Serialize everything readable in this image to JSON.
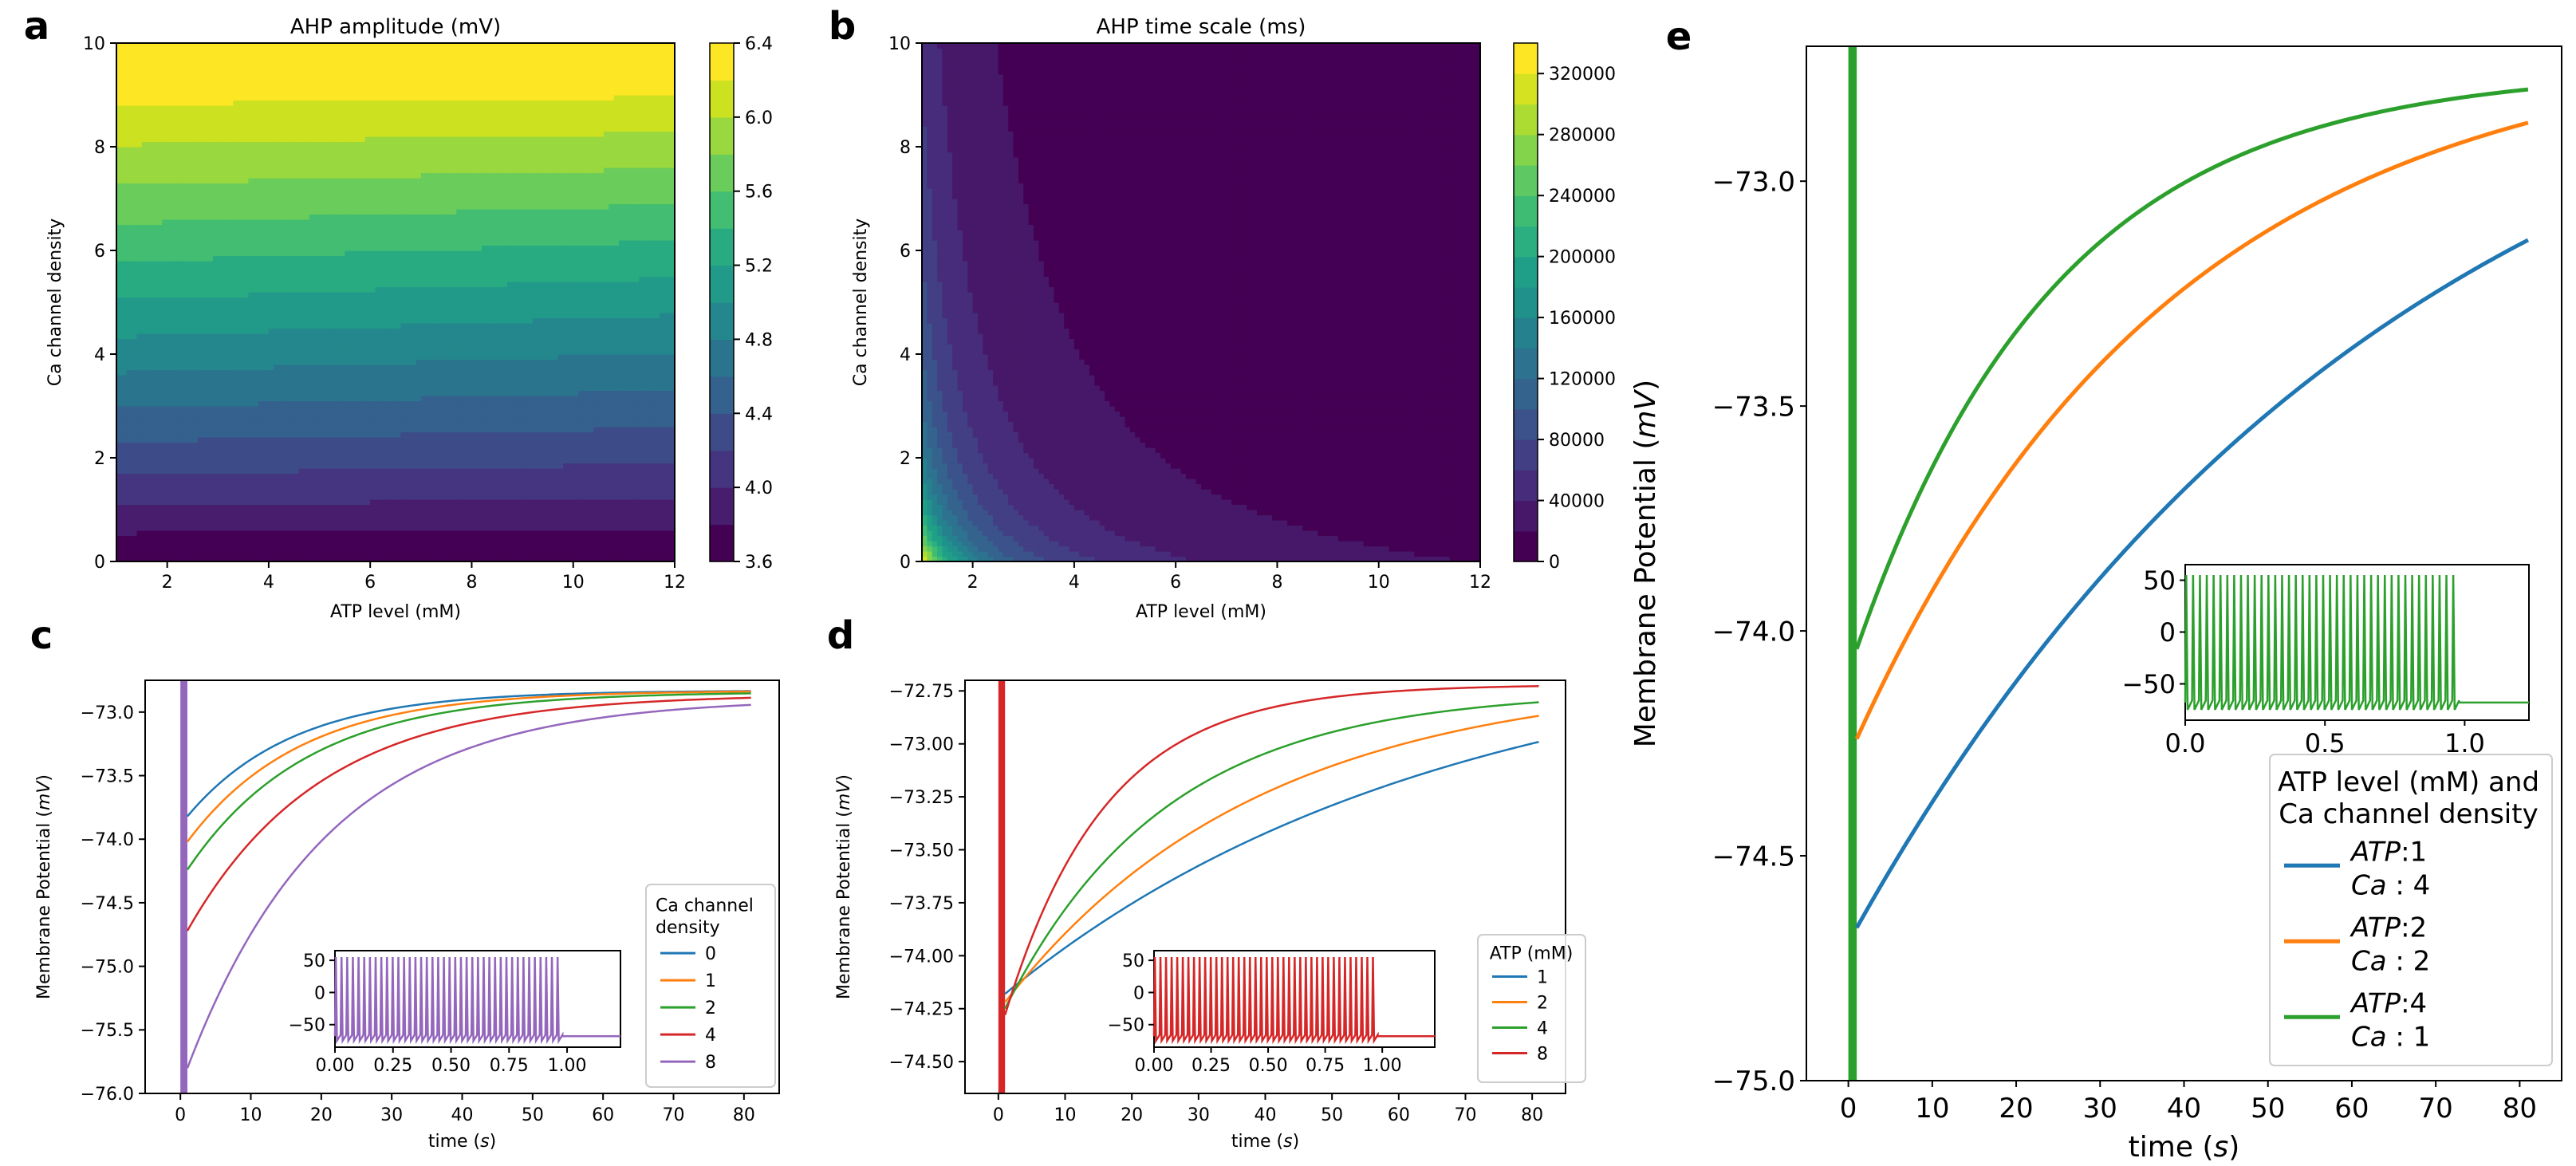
{
  "colors": {
    "viridis": [
      "#440154",
      "#481f70",
      "#443983",
      "#3b528b",
      "#31688e",
      "#287c8e",
      "#21918c",
      "#20a486",
      "#35b779",
      "#5ec962",
      "#90d743",
      "#c8e020",
      "#fde725"
    ],
    "tab": [
      "#1f77b4",
      "#ff7f0e",
      "#2ca02c",
      "#d62728",
      "#9467bd"
    ],
    "red": "#d62728",
    "purple": "#9467bd",
    "green": "#2ca02c"
  },
  "chart_data": [
    {
      "id": "a",
      "panel_label": "a",
      "type": "heatmap",
      "title": "AHP amplitude (mV)",
      "xlabel": "ATP level (mM)",
      "ylabel": "Ca channel density",
      "xlim": [
        1,
        12
      ],
      "ylim": [
        0,
        10
      ],
      "xticks": [
        "2",
        "4",
        "6",
        "8",
        "10",
        "12"
      ],
      "xtick_values": [
        2,
        4,
        6,
        8,
        10,
        12
      ],
      "yticks": [
        "0",
        "2",
        "4",
        "6",
        "8",
        "10"
      ],
      "ytick_values": [
        0,
        2,
        4,
        6,
        8,
        10
      ],
      "colorbar_ticks": [
        "3.6",
        "4.0",
        "4.4",
        "4.8",
        "5.2",
        "5.6",
        "6.0",
        "6.4"
      ],
      "colorbar_range": [
        3.6,
        6.4
      ],
      "colorbar_levels": 14
    },
    {
      "id": "b",
      "panel_label": "b",
      "type": "heatmap",
      "title": "AHP time scale (ms)",
      "xlabel": "ATP level (mM)",
      "ylabel": "Ca channel density",
      "xlim": [
        1,
        12
      ],
      "ylim": [
        0,
        10
      ],
      "xticks": [
        "2",
        "4",
        "6",
        "8",
        "10",
        "12"
      ],
      "xtick_values": [
        2,
        4,
        6,
        8,
        10,
        12
      ],
      "yticks": [
        "0",
        "2",
        "4",
        "6",
        "8",
        "10"
      ],
      "ytick_values": [
        0,
        2,
        4,
        6,
        8,
        10
      ],
      "colorbar_ticks": [
        "0",
        "40000",
        "80000",
        "120000",
        "160000",
        "200000",
        "240000",
        "280000",
        "320000"
      ],
      "colorbar_range": [
        0,
        340000
      ],
      "colorbar_levels": 17
    },
    {
      "id": "c",
      "panel_label": "c",
      "type": "line",
      "xlabel": "time (s)",
      "xlabel_pre": "time (",
      "xlabel_var": "s",
      "xlabel_post": ")",
      "ylabel": "Membrane Potential (mV)",
      "ylabel_pre": "Membrane Potential (",
      "ylabel_var": "mV",
      "ylabel_post": ")",
      "xlim": [
        -5,
        85
      ],
      "ylim": [
        -76,
        -72.75
      ],
      "xticks": [
        "0",
        "10",
        "20",
        "30",
        "40",
        "50",
        "60",
        "70",
        "80"
      ],
      "xtick_values": [
        0,
        10,
        20,
        30,
        40,
        50,
        60,
        70,
        80
      ],
      "yticks": [
        "-76.0",
        "-75.5",
        "-75.0",
        "-74.5",
        "-74.0",
        "-73.5",
        "-73.0"
      ],
      "ytick_values": [
        -76.0,
        -75.5,
        -75.0,
        -74.5,
        -74.0,
        -73.5,
        -73.0
      ],
      "legend_title": [
        "Ca channel",
        "density"
      ],
      "legend_position": "lower-right",
      "series": [
        {
          "name": "0",
          "start": -73.82,
          "end": -72.83,
          "tau": 15
        },
        {
          "name": "1",
          "start": -74.02,
          "end": -72.83,
          "tau": 16
        },
        {
          "name": "2",
          "start": -74.24,
          "end": -72.84,
          "tau": 17
        },
        {
          "name": "4",
          "start": -74.72,
          "end": -72.86,
          "tau": 19
        },
        {
          "name": "8",
          "start": -75.8,
          "end": -72.89,
          "tau": 20
        }
      ],
      "inset": {
        "xlim": [
          0,
          1.23
        ],
        "ylim": [
          -85,
          65
        ],
        "xticks": [
          "0.00",
          "0.25",
          "0.50",
          "0.75",
          "1.00"
        ],
        "xtick_values": [
          0,
          0.25,
          0.5,
          0.75,
          1.0
        ],
        "yticks": [
          "50",
          "0",
          "-50"
        ],
        "ytick_values": [
          50,
          0,
          -50
        ],
        "spike_high": 55,
        "spike_low": -75,
        "spike_end": 0.98,
        "spike_count": 40,
        "rest": -68
      }
    },
    {
      "id": "d",
      "panel_label": "d",
      "type": "line",
      "xlabel": "time (s)",
      "xlabel_pre": "time (",
      "xlabel_var": "s",
      "xlabel_post": ")",
      "ylabel": "Membrane Potential (mV)",
      "ylabel_pre": "Membrane Potential (",
      "ylabel_var": "mV",
      "ylabel_post": ")",
      "xlim": [
        -5,
        85
      ],
      "ylim": [
        -74.65,
        -72.7
      ],
      "xticks": [
        "0",
        "10",
        "20",
        "30",
        "40",
        "50",
        "60",
        "70",
        "80"
      ],
      "xtick_values": [
        0,
        10,
        20,
        30,
        40,
        50,
        60,
        70,
        80
      ],
      "yticks": [
        "-74.50",
        "-74.25",
        "-74.00",
        "-73.75",
        "-73.50",
        "-73.25",
        "-73.00",
        "-72.75"
      ],
      "ytick_values": [
        -74.5,
        -74.25,
        -74.0,
        -73.75,
        -73.5,
        -73.25,
        -73.0,
        -72.75
      ],
      "legend_title": [
        "ATP (mM)"
      ],
      "legend_position": "lower-right",
      "series": [
        {
          "name": "1",
          "start": -74.18,
          "end": -72.5,
          "tau": 65
        },
        {
          "name": "2",
          "start": -74.22,
          "end": -72.68,
          "tau": 38
        },
        {
          "name": "4",
          "start": -74.25,
          "end": -72.75,
          "tau": 24
        },
        {
          "name": "8",
          "start": -74.28,
          "end": -72.72,
          "tau": 15
        }
      ],
      "inset": {
        "xlim": [
          0,
          1.23
        ],
        "ylim": [
          -85,
          65
        ],
        "xticks": [
          "0.00",
          "0.25",
          "0.50",
          "0.75",
          "1.00"
        ],
        "xtick_values": [
          0,
          0.25,
          0.5,
          0.75,
          1.0
        ],
        "yticks": [
          "50",
          "0",
          "-50"
        ],
        "ytick_values": [
          50,
          0,
          -50
        ],
        "spike_high": 55,
        "spike_low": -75,
        "spike_end": 0.98,
        "spike_count": 40,
        "rest": -68
      }
    },
    {
      "id": "e",
      "panel_label": "e",
      "type": "line",
      "xlabel": "time (s)",
      "xlabel_pre": "time (",
      "xlabel_var": "s",
      "xlabel_post": ")",
      "ylabel": "Membrane Potential (mV)",
      "ylabel_pre": "Membrane Potential (",
      "ylabel_var": "mV",
      "ylabel_post": ")",
      "xlim": [
        -5,
        85
      ],
      "ylim": [
        -75.0,
        -72.7
      ],
      "xticks": [
        "0",
        "10",
        "20",
        "30",
        "40",
        "50",
        "60",
        "70",
        "80"
      ],
      "xtick_values": [
        0,
        10,
        20,
        30,
        40,
        50,
        60,
        70,
        80
      ],
      "yticks": [
        "-75.0",
        "-74.5",
        "-74.0",
        "-73.5",
        "-73.0"
      ],
      "ytick_values": [
        -75.0,
        -74.5,
        -74.0,
        -73.5,
        -73.0
      ],
      "legend_title": [
        "ATP level (mM) and",
        "Ca channel density"
      ],
      "legend_position": "lower-right",
      "series": [
        {
          "name": "ATP:1 Ca:4",
          "atp": "1",
          "ca": "4",
          "start": -74.66,
          "end": -72.5,
          "tau": 65
        },
        {
          "name": "ATP:2 Ca:2",
          "atp": "2",
          "ca": "2",
          "start": -74.24,
          "end": -72.68,
          "tau": 38
        },
        {
          "name": "ATP:4 Ca:1",
          "atp": "4",
          "ca": "1",
          "start": -74.04,
          "end": -72.75,
          "tau": 24
        }
      ],
      "inset": {
        "xlim": [
          0,
          1.23
        ],
        "ylim": [
          -85,
          65
        ],
        "xticks": [
          "0.0",
          "0.5",
          "1.0"
        ],
        "xtick_values": [
          0,
          0.5,
          1.0
        ],
        "yticks": [
          "50",
          "0",
          "-50"
        ],
        "ytick_values": [
          50,
          0,
          -50
        ],
        "spike_high": 55,
        "spike_low": -75,
        "spike_end": 0.98,
        "spike_count": 40,
        "rest": -68
      }
    }
  ]
}
